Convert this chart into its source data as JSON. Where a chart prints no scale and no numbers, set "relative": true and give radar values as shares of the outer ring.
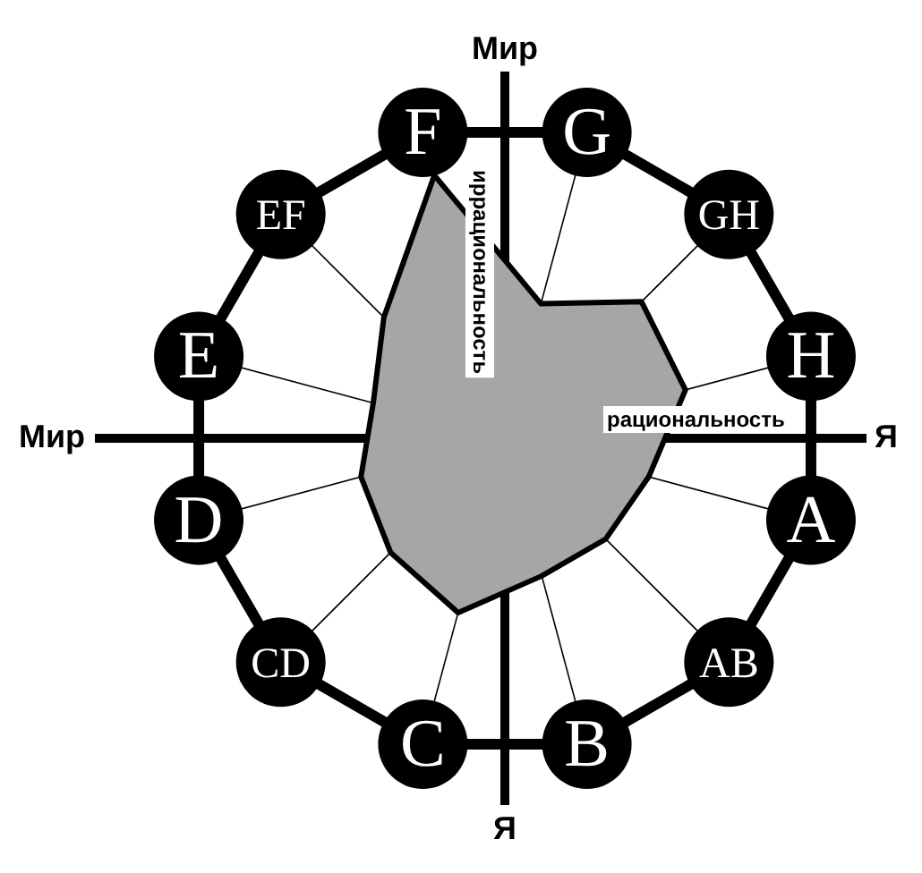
{
  "chart_data": {
    "type": "radar",
    "categories": [
      "G",
      "GH",
      "H",
      "A",
      "AB",
      "B",
      "C",
      "CD",
      "D",
      "E",
      "EF",
      "F"
    ],
    "series": [
      {
        "color": "#a6a6a6",
        "values": [
          0.44,
          0.61,
          0.59,
          0.47,
          0.45,
          0.45,
          0.57,
          0.51,
          0.47,
          0.43,
          0.54,
          0.86
        ]
      }
    ],
    "relative": true,
    "grid": true,
    "legend": false,
    "annotations": [
      "Мир",
      "Мир",
      "Я",
      "Я",
      "иррациональность",
      "рациональность"
    ]
  }
}
